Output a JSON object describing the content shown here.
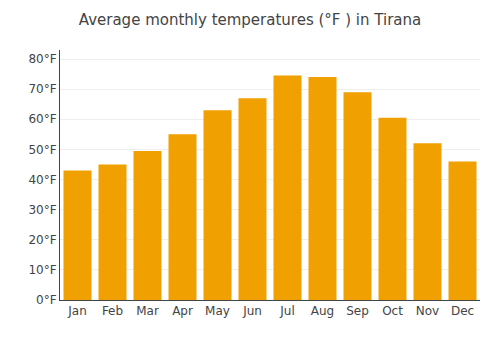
{
  "chart_data": {
    "type": "bar",
    "title": "Average monthly temperatures (°F ) in Tirana",
    "categories": [
      "Jan",
      "Feb",
      "Mar",
      "Apr",
      "May",
      "Jun",
      "Jul",
      "Aug",
      "Sep",
      "Oct",
      "Nov",
      "Dec"
    ],
    "values": [
      43,
      45,
      49.5,
      55,
      63,
      67,
      74.5,
      74,
      69,
      60.5,
      52,
      46
    ],
    "color": "#F0A000",
    "ylim": [
      0,
      83
    ],
    "yticks": [
      {
        "value": 0,
        "label": "0°F"
      },
      {
        "value": 10,
        "label": "10°F"
      },
      {
        "value": 20,
        "label": "20°F"
      },
      {
        "value": 30,
        "label": "30°F"
      },
      {
        "value": 40,
        "label": "40°F"
      },
      {
        "value": 50,
        "label": "50°F"
      },
      {
        "value": 60,
        "label": "60°F"
      },
      {
        "value": 70,
        "label": "70°F"
      },
      {
        "value": 80,
        "label": "80°F"
      }
    ],
    "grid": true
  }
}
